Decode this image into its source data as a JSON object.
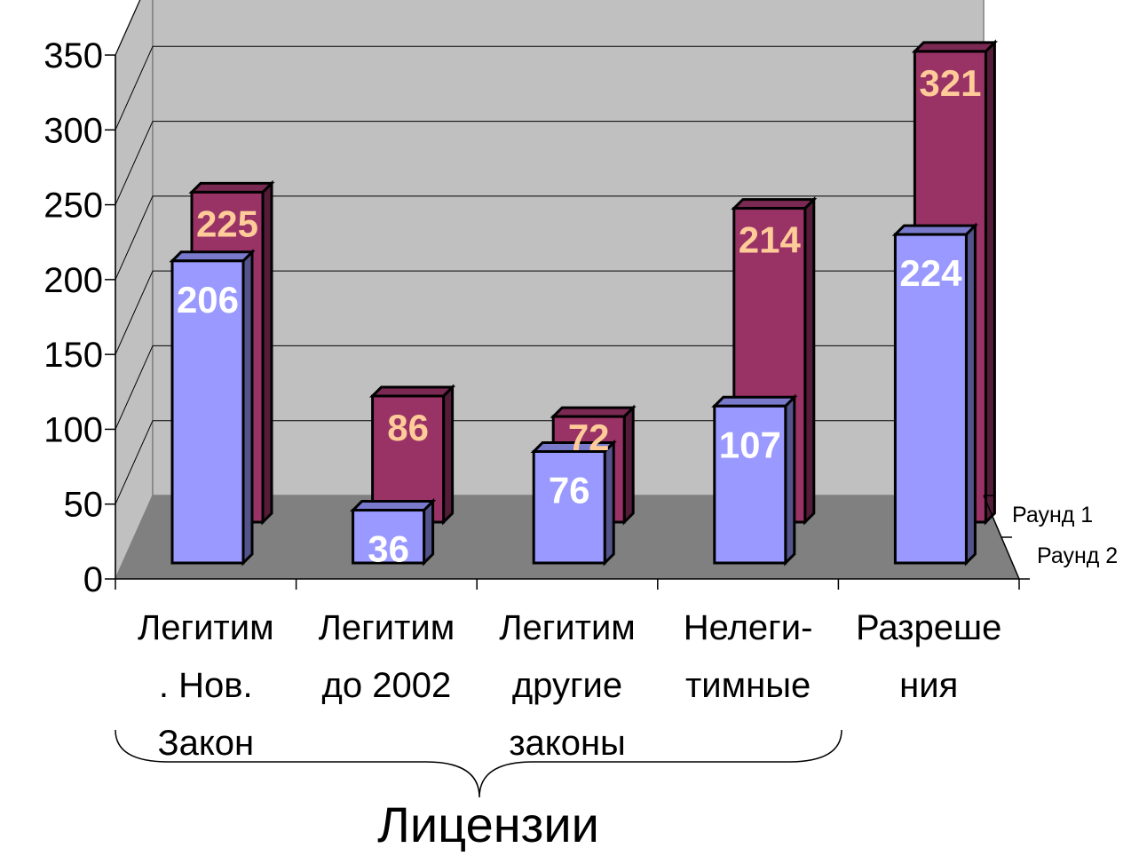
{
  "chart_data": {
    "type": "bar",
    "style": "3d-clustered-depth",
    "categories": [
      [
        "Легитим",
        ". Нов.",
        "Закон"
      ],
      [
        "Легитим",
        "до 2002"
      ],
      [
        "Легитим",
        "другие",
        "законы"
      ],
      [
        "Нелеги-",
        "тимные"
      ],
      [
        "Разреше",
        "ния"
      ]
    ],
    "series": [
      {
        "name": "Раунд 1",
        "values": [
          225,
          86,
          72,
          214,
          321
        ],
        "color": "#993366",
        "label_color": "#FFCC99"
      },
      {
        "name": "Раунд 2",
        "values": [
          206,
          36,
          76,
          107,
          224
        ],
        "color": "#9999FF",
        "label_color": "#FFFFFF"
      }
    ],
    "ylim": [
      0,
      350
    ],
    "yticks": [
      "0",
      "50",
      "100",
      "150",
      "200",
      "250",
      "300",
      "350"
    ],
    "grid": true,
    "group_label": "Лицензии",
    "colors": {
      "back_wall": "#C0C0C0",
      "floor": "#808080",
      "gridline": "#000000"
    }
  }
}
